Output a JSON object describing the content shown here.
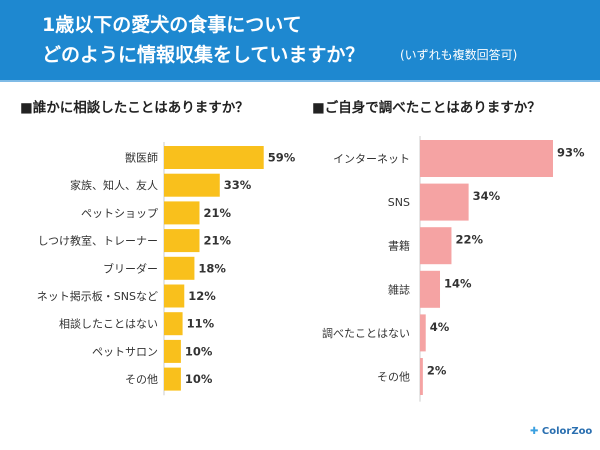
{
  "header": {
    "title_line1": "1歳以下の愛犬の食事について",
    "title_line2": "どのように情報収集をしていますか？",
    "note": "(いずれも複数回答可)"
  },
  "chart_data": [
    {
      "type": "bar",
      "orientation": "horizontal",
      "title": "■誰かに相談したことはありますか？",
      "categories": [
        "獣医師",
        "家族、知人、友人",
        "ペットショップ",
        "しつけ教室、トレーナー",
        "ブリーダー",
        "ネット掲示板・SNSなど",
        "相談したことはない",
        "ペットサロン",
        "その他"
      ],
      "values": [
        59,
        33,
        21,
        21,
        18,
        12,
        11,
        10,
        10
      ],
      "unit": "%",
      "color": "#f9c01c"
    },
    {
      "type": "bar",
      "orientation": "horizontal",
      "title": "■ご自身で調べたことはありますか？",
      "categories": [
        "インターネット",
        "SNS",
        "書籍",
        "雑誌",
        "調べたことはない",
        "その他"
      ],
      "values": [
        93,
        34,
        22,
        14,
        4,
        2
      ],
      "unit": "%",
      "color": "#f5a3a3"
    }
  ],
  "logo": "ColorZoo"
}
